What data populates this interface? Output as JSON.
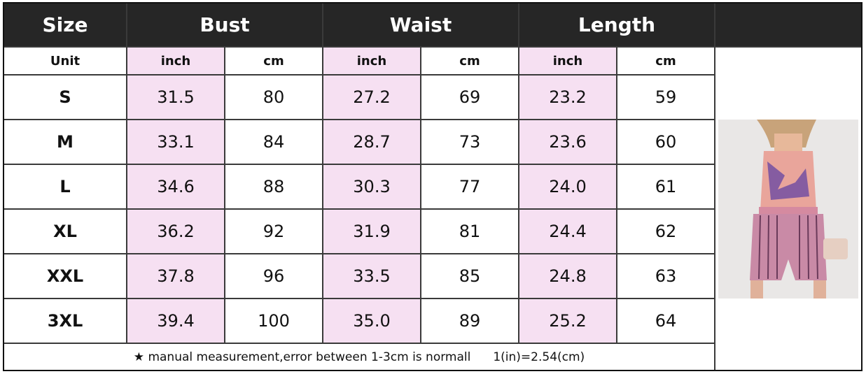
{
  "header": [
    "Size",
    "Bust",
    "Waist",
    "Length"
  ],
  "units": {
    "label": "Unit",
    "cols": [
      "inch",
      "cm",
      "inch",
      "cm",
      "inch",
      "cm"
    ]
  },
  "rows": [
    [
      "S",
      "31.5",
      "80",
      "27.2",
      "69",
      "23.2",
      "59"
    ],
    [
      "M",
      "33.1",
      "84",
      "28.7",
      "73",
      "23.6",
      "60"
    ],
    [
      "L",
      "34.6",
      "88",
      "30.3",
      "77",
      "24.0",
      "61"
    ],
    [
      "XL",
      "36.2",
      "92",
      "31.9",
      "81",
      "24.4",
      "62"
    ],
    [
      "XXL",
      "37.8",
      "96",
      "33.5",
      "85",
      "24.8",
      "63"
    ],
    [
      "3XL",
      "39.4",
      "100",
      "35.0",
      "89",
      "25.2",
      "64"
    ]
  ],
  "footer": {
    "note": "★ manual measurement,error between 1-3cm is normall",
    "conversion": "1(in)=2.54(cm)"
  }
}
